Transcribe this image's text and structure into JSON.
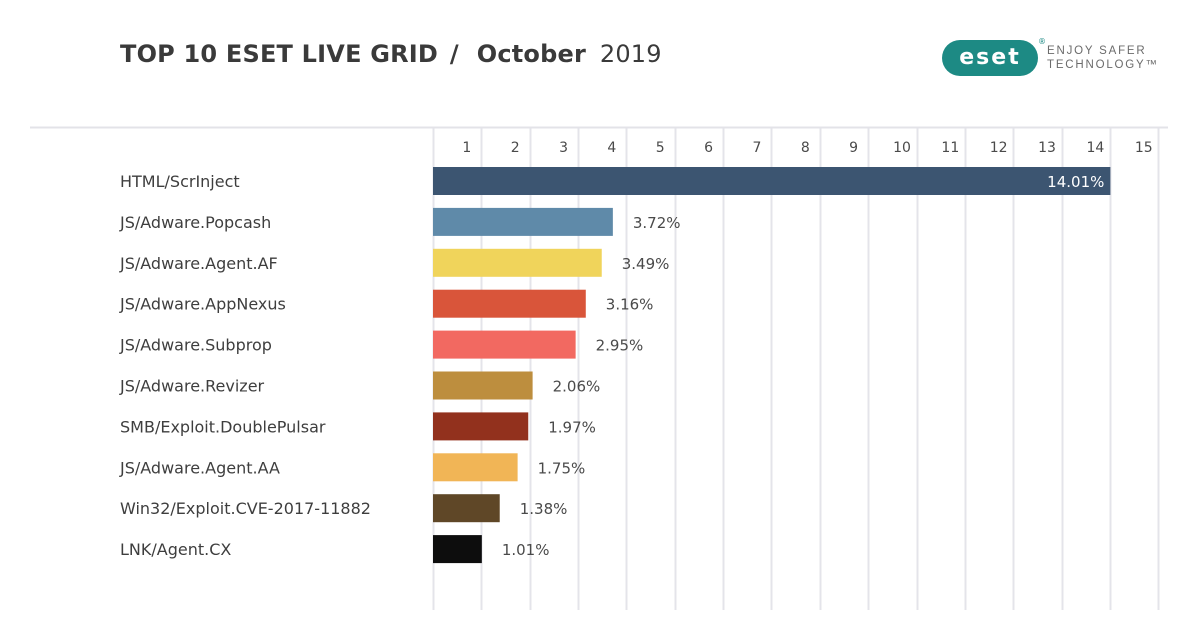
{
  "header": {
    "title_bold": "TOP 10 ESET LIVE GRID",
    "title_sep": "/",
    "month": "October",
    "year": "2019"
  },
  "logo": {
    "brand": "eset",
    "registered": "®",
    "tagline_line1": "ENJOY SAFER",
    "tagline_line2": "TECHNOLOGY™",
    "brand_color": "#1d8a84"
  },
  "chart_data": {
    "type": "bar",
    "orientation": "horizontal",
    "title": "TOP 10 ESET LIVE GRID / October 2019",
    "xlabel": "",
    "ylabel": "",
    "xlim": [
      0,
      15
    ],
    "x_ticks": [
      "1",
      "2",
      "3",
      "4",
      "5",
      "6",
      "7",
      "8",
      "9",
      "10",
      "11",
      "12",
      "13",
      "14",
      "15"
    ],
    "grid": true,
    "categories": [
      "HTML/ScrInject",
      "JS/Adware.Popcash",
      "JS/Adware.Agent.AF",
      "JS/Adware.AppNexus",
      "JS/Adware.Subprop",
      "JS/Adware.Revizer",
      "SMB/Exploit.DoublePulsar",
      "JS/Adware.Agent.AA",
      "Win32/Exploit.CVE-2017-11882",
      "LNK/Agent.CX"
    ],
    "values": [
      14.01,
      3.72,
      3.49,
      3.16,
      2.95,
      2.06,
      1.97,
      1.75,
      1.38,
      1.01
    ],
    "value_labels": [
      "14.01%",
      "3.72%",
      "3.49%",
      "3.16%",
      "2.95%",
      "2.06%",
      "1.97%",
      "1.75%",
      "1.38%",
      "1.01%"
    ],
    "colors": [
      "#36506c",
      "#5a86a6",
      "#f0d356",
      "#d85034",
      "#f2645c",
      "#bb8a38",
      "#8e2a16",
      "#f1b351",
      "#5a4120",
      "#050505"
    ]
  }
}
